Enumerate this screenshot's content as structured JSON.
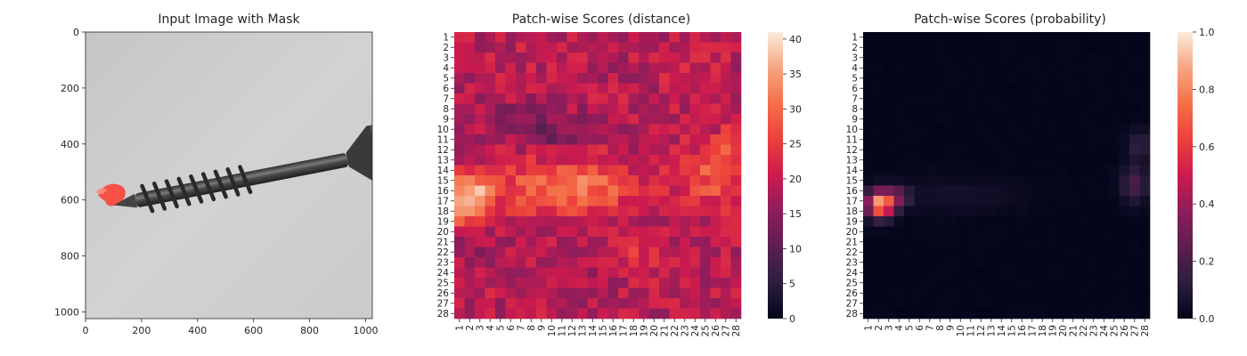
{
  "chart_data": [
    {
      "type": "image",
      "title": "Input Image with Mask",
      "xlim": [
        0,
        1024
      ],
      "ylim": [
        1024,
        0
      ],
      "xticks": [
        "0",
        "200",
        "400",
        "600",
        "800",
        "1000"
      ],
      "yticks": [
        "0",
        "200",
        "400",
        "600",
        "800",
        "1000"
      ],
      "content": "grayscale screw image with red mask at screw tip",
      "mask_color": "#ff3b30"
    },
    {
      "type": "heatmap",
      "title": "Patch-wise Scores (distance)",
      "rows": [
        "1",
        "2",
        "3",
        "4",
        "5",
        "6",
        "7",
        "8",
        "9",
        "10",
        "11",
        "12",
        "13",
        "14",
        "15",
        "16",
        "17",
        "18",
        "19",
        "20",
        "21",
        "22",
        "23",
        "24",
        "25",
        "26",
        "27",
        "28"
      ],
      "cols": [
        "1",
        "2",
        "3",
        "4",
        "5",
        "6",
        "7",
        "8",
        "9",
        "10",
        "11",
        "12",
        "13",
        "14",
        "15",
        "16",
        "17",
        "18",
        "19",
        "20",
        "21",
        "22",
        "23",
        "24",
        "25",
        "26",
        "27",
        "28"
      ],
      "colorbar": {
        "range": [
          0,
          41
        ],
        "ticks": [
          "0",
          "5",
          "10",
          "15",
          "20",
          "25",
          "30",
          "35",
          "40"
        ]
      },
      "colormap": "rocket",
      "hotspots": [
        {
          "row": 17,
          "col": 2,
          "value": 38
        },
        {
          "row": 16,
          "col": 13,
          "value": 31
        },
        {
          "row": 14,
          "col": 26,
          "value": 30
        },
        {
          "row": 11,
          "col": 28,
          "value": 29
        }
      ]
    },
    {
      "type": "heatmap",
      "title": "Patch-wise Scores (probability)",
      "rows": [
        "1",
        "2",
        "3",
        "4",
        "5",
        "6",
        "7",
        "8",
        "9",
        "10",
        "11",
        "12",
        "13",
        "14",
        "15",
        "16",
        "17",
        "18",
        "19",
        "20",
        "21",
        "22",
        "23",
        "24",
        "25",
        "26",
        "27",
        "28"
      ],
      "cols": [
        "1",
        "2",
        "3",
        "4",
        "5",
        "6",
        "7",
        "8",
        "9",
        "10",
        "11",
        "12",
        "13",
        "14",
        "15",
        "16",
        "17",
        "18",
        "19",
        "20",
        "21",
        "22",
        "23",
        "24",
        "25",
        "26",
        "27",
        "28"
      ],
      "colorbar": {
        "range": [
          0,
          1
        ],
        "ticks": [
          "0.0",
          "0.2",
          "0.4",
          "0.6",
          "0.8",
          "1.0"
        ]
      },
      "colormap": "rocket",
      "hotspots": [
        {
          "row": 17,
          "col": 2,
          "value": 0.85
        },
        {
          "row": 17,
          "col": 3,
          "value": 0.72
        },
        {
          "row": 16,
          "col": 3,
          "value": 0.6
        },
        {
          "row": 18,
          "col": 2,
          "value": 0.62
        },
        {
          "row": 15,
          "col": 27,
          "value": 0.2
        },
        {
          "row": 11,
          "col": 27,
          "value": 0.15
        }
      ]
    }
  ]
}
